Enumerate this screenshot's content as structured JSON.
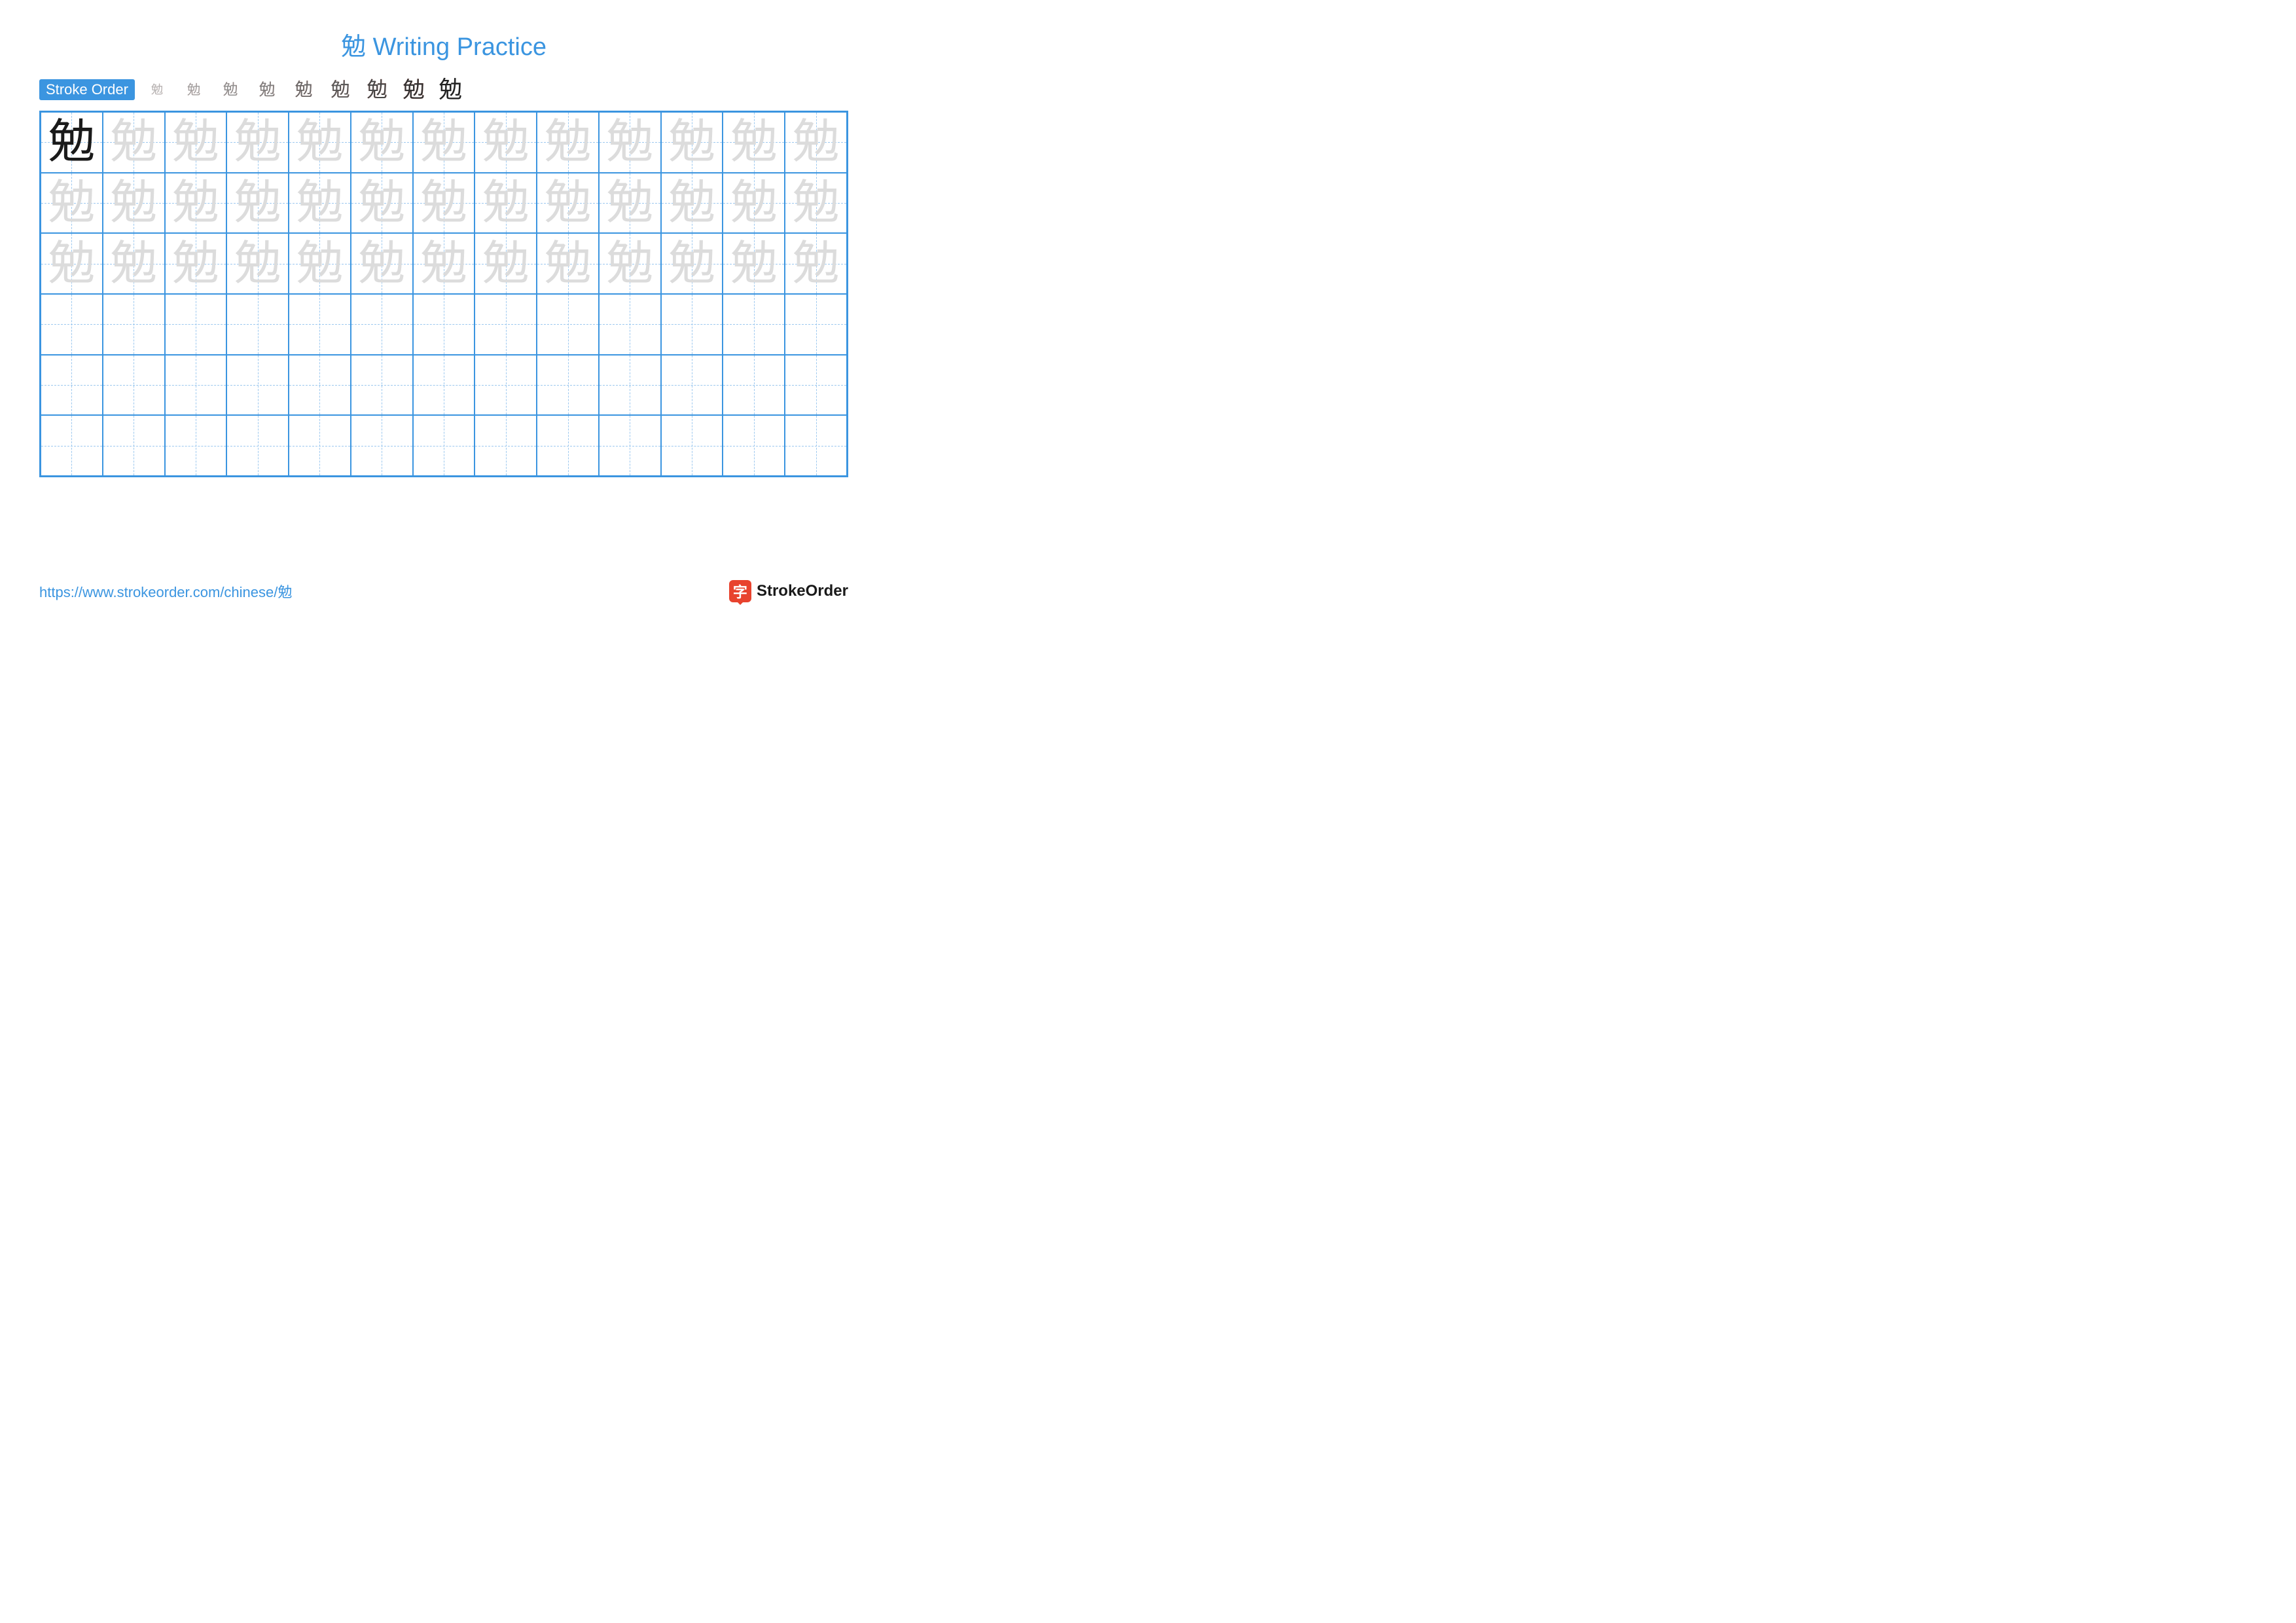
{
  "title": {
    "char": "勉",
    "text": "Writing Practice"
  },
  "stroke_order": {
    "label": "Stroke Order",
    "count": 9,
    "character": "勉",
    "step_color_current": "#e8432e",
    "step_color_done": "#1a1a1a"
  },
  "grid": {
    "columns": 13,
    "rows": 6,
    "character": "勉",
    "border_color": "#3b95e0",
    "guide_color": "#9cc8ef",
    "model_color": "#1a1a1a",
    "trace_color": "#dcdcdc",
    "background_color": "#ffffff",
    "rows_config": [
      {
        "type": "model_first_then_trace"
      },
      {
        "type": "trace"
      },
      {
        "type": "trace"
      },
      {
        "type": "blank"
      },
      {
        "type": "blank"
      },
      {
        "type": "blank"
      }
    ],
    "char_font_size": 72
  },
  "footer": {
    "url": "https://www.strokeorder.com/chinese/勉",
    "logo_glyph": "字",
    "logo_text": "StrokeOrder",
    "logo_bg": "#e8432e"
  }
}
